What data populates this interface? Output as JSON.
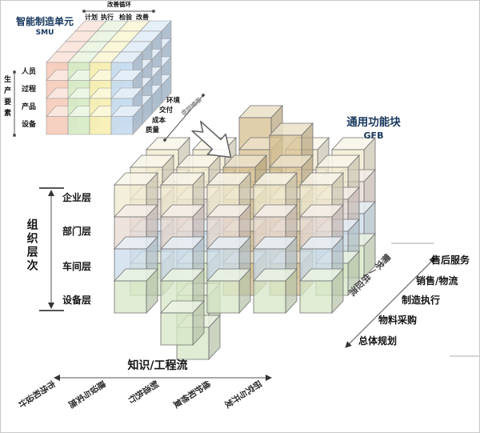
{
  "smu": {
    "title": "智能制造单元",
    "subtitle": "SMU",
    "title_color": "#17375e",
    "top_axis": {
      "label": "改善循环",
      "items": [
        "计划",
        "执行",
        "检验",
        "改善"
      ]
    },
    "left_axis": {
      "label": "生产要素",
      "items": [
        "人员",
        "过程",
        "产品",
        "设备"
      ]
    },
    "right_axis": {
      "label": "经营目标",
      "items": [
        "环境",
        "交付",
        "成本",
        "质量"
      ]
    },
    "column_colors": [
      "#f5cdbd",
      "#d8ecc8",
      "#f7efb4",
      "#c8dcf0"
    ]
  },
  "gfb": {
    "title": "通用功能块",
    "subtitle": "GFB",
    "title_color": "#17375e",
    "left_axis": {
      "label": "组织层次",
      "items": [
        "企业层",
        "部门层",
        "车间层",
        "设备层"
      ]
    },
    "bottom_axis": {
      "label": "知识/工程流",
      "items": [
        "市场和设计",
        "建设与实施",
        "制造执行",
        "维护和修复",
        "研究与开发"
      ]
    },
    "right_axis": {
      "label": "需求/供应流",
      "items": [
        "售后服务",
        "销售/物流",
        "制造执行",
        "物料采购",
        "总体规划"
      ]
    },
    "layer_colors": [
      "#f1ead0",
      "#e8dad2",
      "#cdddea",
      "#d7e7c6"
    ],
    "highlight_color": "#d7c193",
    "extension_color": "#d7e7c6"
  }
}
